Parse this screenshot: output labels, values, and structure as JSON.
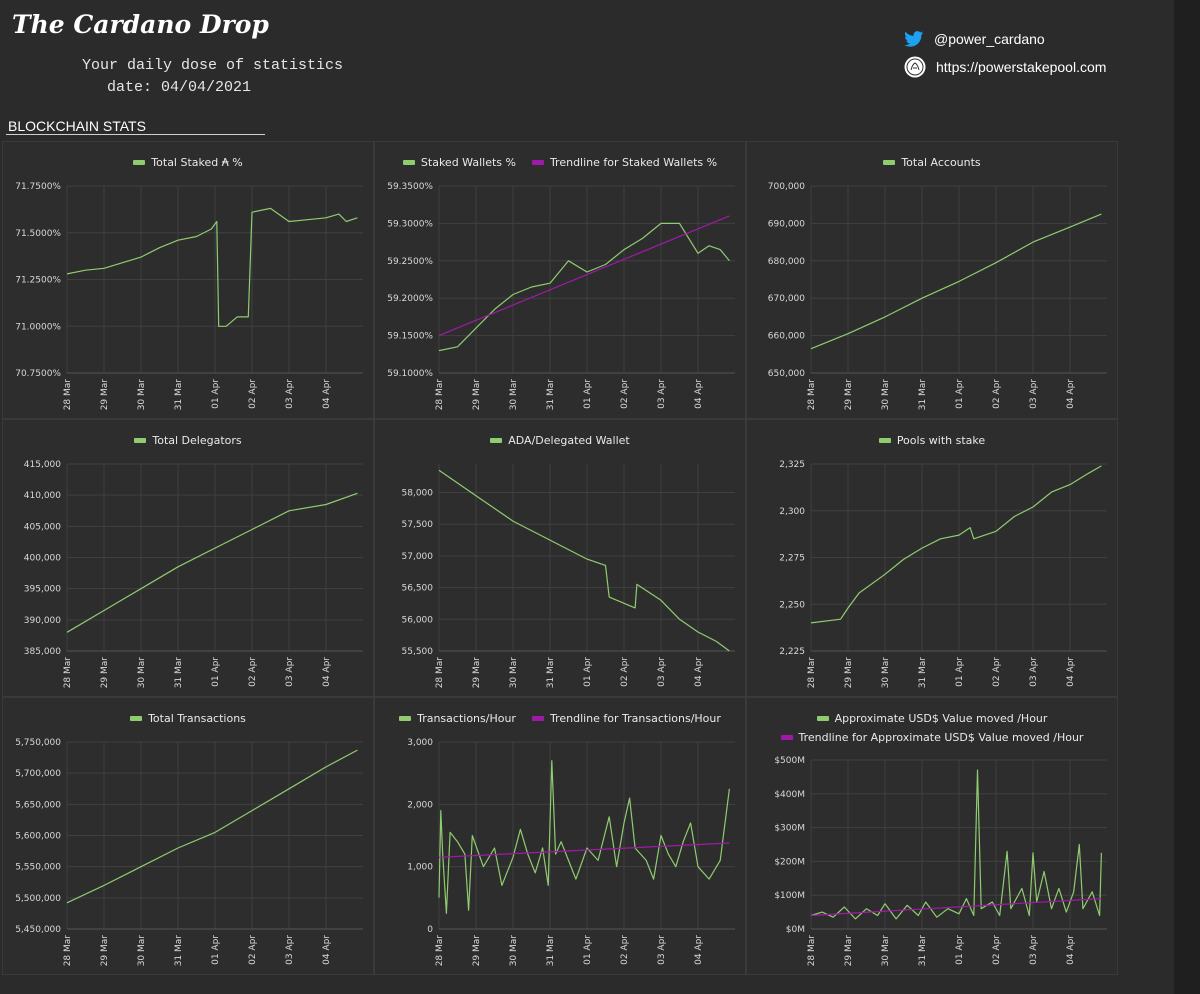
{
  "header": {
    "brand": "The Cardano Drop",
    "tagline": "Your daily dose of statistics",
    "date_line": "date: 04/04/2021",
    "twitter": "@power_cardano",
    "website": "https://powerstakepool.com",
    "twitter_icon": "twitter-bird-icon",
    "website_icon": "pool-logo-icon"
  },
  "section": {
    "title": "BLOCKCHAIN STATS"
  },
  "colors": {
    "series": "#8fcc6f",
    "trend": "#a01aa8",
    "grid": "#404040",
    "axis_text": "#d8d8d8"
  },
  "x_axis": {
    "start": 0,
    "end": 8,
    "ticks": [
      0,
      1,
      2,
      3,
      4,
      5,
      6,
      7
    ],
    "labels": [
      "28 Mar",
      "29 Mar",
      "30 Mar",
      "31 Mar",
      "01 Apr",
      "02 Apr",
      "03 Apr",
      "04 Apr"
    ]
  },
  "chart_data": [
    {
      "id": "staked",
      "type": "line",
      "title": "",
      "legend": [
        "Total Staked ₳ %"
      ],
      "y_ticks": [
        70.75,
        71.0,
        71.25,
        71.5,
        71.75
      ],
      "y_tick_labels": [
        "70.7500%",
        "71.0000%",
        "71.2500%",
        "71.5000%",
        "71.7500%"
      ],
      "ylim": [
        70.75,
        71.75
      ],
      "series": [
        {
          "name": "Total Staked ₳ %",
          "points": [
            [
              0,
              71.28
            ],
            [
              0.5,
              71.3
            ],
            [
              1.0,
              71.31
            ],
            [
              1.5,
              71.34
            ],
            [
              2.0,
              71.37
            ],
            [
              2.5,
              71.42
            ],
            [
              3.0,
              71.46
            ],
            [
              3.5,
              71.48
            ],
            [
              3.9,
              71.52
            ],
            [
              4.05,
              71.56
            ],
            [
              4.1,
              71.0
            ],
            [
              4.3,
              71.0
            ],
            [
              4.6,
              71.05
            ],
            [
              4.9,
              71.05
            ],
            [
              5.0,
              71.61
            ],
            [
              5.5,
              71.63
            ],
            [
              6.0,
              71.56
            ],
            [
              6.5,
              71.57
            ],
            [
              7.0,
              71.58
            ],
            [
              7.35,
              71.6
            ],
            [
              7.55,
              71.56
            ],
            [
              7.85,
              71.58
            ]
          ]
        }
      ]
    },
    {
      "id": "wallets",
      "type": "line",
      "title": "",
      "legend": [
        "Staked Wallets %",
        "Trendline for Staked Wallets %"
      ],
      "y_ticks": [
        59.1,
        59.15,
        59.2,
        59.25,
        59.3,
        59.35
      ],
      "y_tick_labels": [
        "59.1000%",
        "59.1500%",
        "59.2000%",
        "59.2500%",
        "59.3000%",
        "59.3500%"
      ],
      "ylim": [
        59.1,
        59.35
      ],
      "series": [
        {
          "name": "Staked Wallets %",
          "points": [
            [
              0,
              59.13
            ],
            [
              0.5,
              59.135
            ],
            [
              1.0,
              59.16
            ],
            [
              1.5,
              59.185
            ],
            [
              2.0,
              59.205
            ],
            [
              2.5,
              59.215
            ],
            [
              3.0,
              59.22
            ],
            [
              3.5,
              59.25
            ],
            [
              4.0,
              59.235
            ],
            [
              4.5,
              59.245
            ],
            [
              5.0,
              59.265
            ],
            [
              5.5,
              59.28
            ],
            [
              6.0,
              59.3
            ],
            [
              6.5,
              59.3
            ],
            [
              7.0,
              59.26
            ],
            [
              7.3,
              59.27
            ],
            [
              7.6,
              59.265
            ],
            [
              7.85,
              59.25
            ]
          ]
        },
        {
          "name": "Trendline for Staked Wallets %",
          "points": [
            [
              0,
              59.15
            ],
            [
              7.85,
              59.31
            ]
          ]
        }
      ]
    },
    {
      "id": "accounts",
      "type": "line",
      "title": "",
      "legend": [
        "Total Accounts"
      ],
      "y_ticks": [
        650000,
        660000,
        670000,
        680000,
        690000,
        700000
      ],
      "y_tick_labels": [
        "650,000",
        "660,000",
        "670,000",
        "680,000",
        "690,000",
        "700,000"
      ],
      "ylim": [
        650000,
        700000
      ],
      "series": [
        {
          "name": "Total Accounts",
          "points": [
            [
              0,
              656500
            ],
            [
              1,
              660500
            ],
            [
              2,
              665000
            ],
            [
              3,
              670000
            ],
            [
              4,
              674500
            ],
            [
              5,
              679500
            ],
            [
              6,
              685000
            ],
            [
              7,
              689000
            ],
            [
              7.85,
              692500
            ]
          ]
        }
      ]
    },
    {
      "id": "delegators",
      "type": "line",
      "title": "",
      "legend": [
        "Total Delegators"
      ],
      "y_ticks": [
        385000,
        390000,
        395000,
        400000,
        405000,
        410000,
        415000
      ],
      "y_tick_labels": [
        "385,000",
        "390,000",
        "395,000",
        "400,000",
        "405,000",
        "410,000",
        "415,000"
      ],
      "ylim": [
        385000,
        415000
      ],
      "series": [
        {
          "name": "Total Delegators",
          "points": [
            [
              0,
              388000
            ],
            [
              1,
              391500
            ],
            [
              2,
              395000
            ],
            [
              3,
              398500
            ],
            [
              4,
              401500
            ],
            [
              5,
              404500
            ],
            [
              6,
              407500
            ],
            [
              7,
              408500
            ],
            [
              7.85,
              410300
            ]
          ]
        }
      ]
    },
    {
      "id": "ada_wallet",
      "type": "line",
      "title": "",
      "legend": [
        "ADA/Delegated Wallet"
      ],
      "y_ticks": [
        55500,
        56000,
        56500,
        57000,
        57500,
        58000
      ],
      "y_tick_labels": [
        "55,500",
        "56,000",
        "56,500",
        "57,000",
        "57,500",
        "58,000"
      ],
      "ylim": [
        55500,
        58450
      ],
      "series": [
        {
          "name": "ADA/Delegated Wallet",
          "points": [
            [
              0,
              58350
            ],
            [
              1,
              57950
            ],
            [
              2,
              57550
            ],
            [
              3,
              57250
            ],
            [
              4,
              56950
            ],
            [
              4.5,
              56850
            ],
            [
              4.6,
              56350
            ],
            [
              5.3,
              56180
            ],
            [
              5.35,
              56550
            ],
            [
              6.0,
              56300
            ],
            [
              6.5,
              56000
            ],
            [
              7.0,
              55800
            ],
            [
              7.5,
              55650
            ],
            [
              7.85,
              55500
            ]
          ]
        }
      ]
    },
    {
      "id": "pools",
      "type": "line",
      "title": "",
      "legend": [
        "Pools with stake"
      ],
      "y_ticks": [
        2225,
        2250,
        2275,
        2300,
        2325
      ],
      "y_tick_labels": [
        "2,225",
        "2,250",
        "2,275",
        "2,300",
        "2,325"
      ],
      "ylim": [
        2225,
        2325
      ],
      "series": [
        {
          "name": "Pools with stake",
          "points": [
            [
              0,
              2240
            ],
            [
              0.8,
              2242
            ],
            [
              1.0,
              2248
            ],
            [
              1.3,
              2256
            ],
            [
              2.0,
              2266
            ],
            [
              2.5,
              2274
            ],
            [
              3.0,
              2280
            ],
            [
              3.5,
              2285
            ],
            [
              4.0,
              2287
            ],
            [
              4.3,
              2291
            ],
            [
              4.4,
              2285
            ],
            [
              5.0,
              2289
            ],
            [
              5.5,
              2297
            ],
            [
              6.0,
              2302
            ],
            [
              6.5,
              2310
            ],
            [
              7.0,
              2314
            ],
            [
              7.5,
              2320
            ],
            [
              7.85,
              2324
            ]
          ]
        }
      ]
    },
    {
      "id": "transactions",
      "type": "line",
      "title": "",
      "legend": [
        "Total Transactions"
      ],
      "y_ticks": [
        5450000,
        5500000,
        5550000,
        5600000,
        5650000,
        5700000,
        5750000
      ],
      "y_tick_labels": [
        "5,450,000",
        "5,500,000",
        "5,550,000",
        "5,600,000",
        "5,650,000",
        "5,700,000",
        "5,750,000"
      ],
      "ylim": [
        5450000,
        5750000
      ],
      "series": [
        {
          "name": "Total Transactions",
          "points": [
            [
              0,
              5492000
            ],
            [
              1,
              5520000
            ],
            [
              2,
              5550000
            ],
            [
              3,
              5580000
            ],
            [
              4,
              5605000
            ],
            [
              5,
              5640000
            ],
            [
              6,
              5675000
            ],
            [
              7,
              5710000
            ],
            [
              7.85,
              5737000
            ]
          ]
        }
      ]
    },
    {
      "id": "tx_hour",
      "type": "line",
      "title": "",
      "legend": [
        "Transactions/Hour",
        "Trendline for Transactions/Hour"
      ],
      "y_ticks": [
        0,
        1000,
        2000,
        3000
      ],
      "y_tick_labels": [
        "0",
        "1,000",
        "2,000",
        "3,000"
      ],
      "ylim": [
        0,
        3000
      ],
      "series": [
        {
          "name": "Transactions/Hour",
          "points": [
            [
              0,
              500
            ],
            [
              0.05,
              1900
            ],
            [
              0.1,
              1200
            ],
            [
              0.2,
              250
            ],
            [
              0.3,
              1550
            ],
            [
              0.5,
              1400
            ],
            [
              0.7,
              1200
            ],
            [
              0.8,
              300
            ],
            [
              0.9,
              1500
            ],
            [
              1.2,
              1000
            ],
            [
              1.5,
              1300
            ],
            [
              1.7,
              700
            ],
            [
              2.0,
              1150
            ],
            [
              2.2,
              1600
            ],
            [
              2.4,
              1200
            ],
            [
              2.6,
              900
            ],
            [
              2.8,
              1300
            ],
            [
              2.95,
              700
            ],
            [
              3.05,
              2700
            ],
            [
              3.15,
              1200
            ],
            [
              3.3,
              1400
            ],
            [
              3.5,
              1100
            ],
            [
              3.7,
              800
            ],
            [
              4.0,
              1300
            ],
            [
              4.3,
              1100
            ],
            [
              4.6,
              1800
            ],
            [
              4.8,
              1000
            ],
            [
              5.0,
              1700
            ],
            [
              5.15,
              2100
            ],
            [
              5.3,
              1300
            ],
            [
              5.6,
              1100
            ],
            [
              5.8,
              800
            ],
            [
              6.0,
              1500
            ],
            [
              6.2,
              1200
            ],
            [
              6.4,
              1000
            ],
            [
              6.6,
              1400
            ],
            [
              6.8,
              1700
            ],
            [
              7.0,
              1000
            ],
            [
              7.3,
              800
            ],
            [
              7.6,
              1100
            ],
            [
              7.85,
              2250
            ]
          ]
        },
        {
          "name": "Trendline for Transactions/Hour",
          "points": [
            [
              0,
              1150
            ],
            [
              7.85,
              1380
            ]
          ]
        }
      ]
    },
    {
      "id": "usd_hour",
      "type": "line",
      "title": "",
      "legend": [
        "Approximate USD$ Value moved /Hour",
        "Trendline for Approximate USD$ Value moved /Hour"
      ],
      "y_ticks": [
        0,
        100,
        200,
        300,
        400,
        500
      ],
      "y_tick_labels": [
        "$0M",
        "$100M",
        "$200M",
        "$300M",
        "$400M",
        "$500M"
      ],
      "ylim": [
        0,
        500
      ],
      "series": [
        {
          "name": "Approximate USD$ Value moved /Hour",
          "points": [
            [
              0,
              40
            ],
            [
              0.3,
              50
            ],
            [
              0.6,
              35
            ],
            [
              0.9,
              65
            ],
            [
              1.2,
              30
            ],
            [
              1.5,
              60
            ],
            [
              1.8,
              40
            ],
            [
              2.0,
              75
            ],
            [
              2.3,
              30
            ],
            [
              2.6,
              70
            ],
            [
              2.9,
              40
            ],
            [
              3.1,
              80
            ],
            [
              3.4,
              35
            ],
            [
              3.7,
              60
            ],
            [
              4.0,
              45
            ],
            [
              4.2,
              90
            ],
            [
              4.4,
              40
            ],
            [
              4.5,
              470
            ],
            [
              4.6,
              60
            ],
            [
              4.9,
              80
            ],
            [
              5.1,
              40
            ],
            [
              5.3,
              230
            ],
            [
              5.4,
              60
            ],
            [
              5.7,
              120
            ],
            [
              5.9,
              40
            ],
            [
              6.0,
              225
            ],
            [
              6.1,
              80
            ],
            [
              6.3,
              170
            ],
            [
              6.5,
              60
            ],
            [
              6.7,
              120
            ],
            [
              6.9,
              50
            ],
            [
              7.1,
              110
            ],
            [
              7.25,
              250
            ],
            [
              7.35,
              60
            ],
            [
              7.6,
              110
            ],
            [
              7.8,
              40
            ],
            [
              7.85,
              225
            ]
          ]
        },
        {
          "name": "Trendline for Approximate USD$ Value moved /Hour",
          "points": [
            [
              0,
              40
            ],
            [
              7.85,
              90
            ]
          ]
        }
      ]
    }
  ]
}
